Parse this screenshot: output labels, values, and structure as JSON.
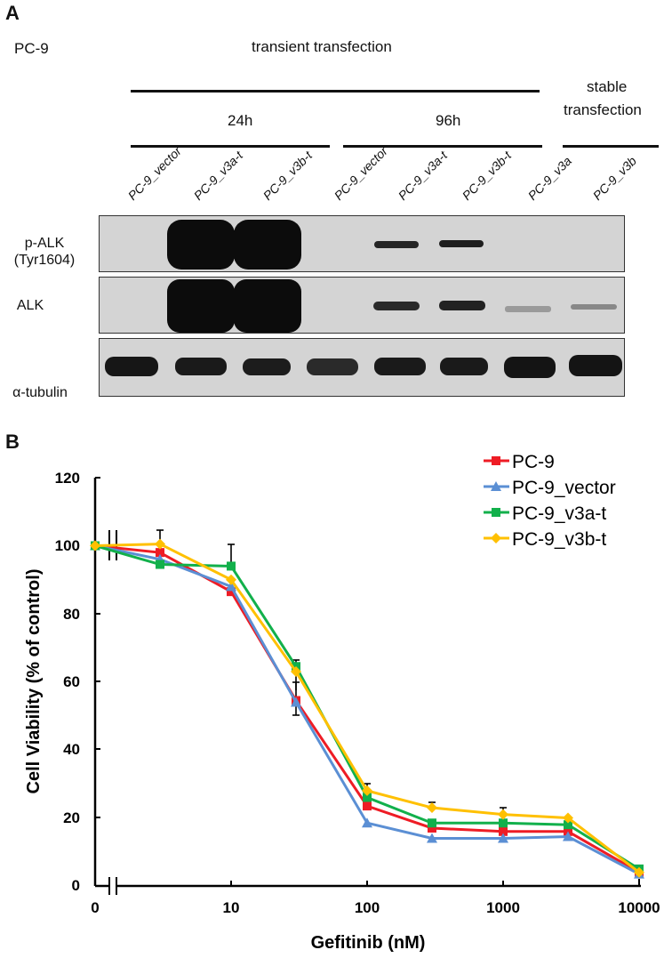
{
  "panelA": {
    "label": "A",
    "cell_line": "PC-9",
    "header_transient": "transient transfection",
    "header_24h": "24h",
    "header_96h": "96h",
    "header_stable_1": "stable",
    "header_stable_2": "transfection",
    "lanes": [
      "PC-9_vector",
      "PC-9_v3a-t",
      "PC-9_v3b-t",
      "PC-9_vector",
      "PC-9_v3a-t",
      "PC-9_v3b-t",
      "PC-9_v3a",
      "PC-9_v3b"
    ],
    "rows": [
      {
        "label_1": "p-ALK",
        "label_2": "(Tyr1604)"
      },
      {
        "label_1": "ALK",
        "label_2": ""
      },
      {
        "label_1": "α-tubulin",
        "label_2": ""
      }
    ]
  },
  "panelB": {
    "label": "B"
  },
  "chart_data": {
    "type": "line",
    "title": "",
    "xlabel": "Gefitinib (nM)",
    "ylabel": "Cell Viability (% of control)",
    "x_scale": "log (with axis break after 0)",
    "x": [
      0,
      3,
      10,
      30,
      100,
      300,
      1000,
      3000,
      10000
    ],
    "x_tick_labels": [
      "0",
      "10",
      "100",
      "1000",
      "10000"
    ],
    "y_tick_labels": [
      "0",
      "20",
      "40",
      "60",
      "80",
      "100",
      "120"
    ],
    "ylim": [
      0,
      120
    ],
    "grid": false,
    "legend_position": "upper right",
    "series": [
      {
        "name": "PC-9",
        "color": "#ee1c25",
        "marker": "square",
        "values": [
          100,
          98,
          86.5,
          54.5,
          23.5,
          17,
          16,
          16,
          4
        ]
      },
      {
        "name": "PC-9_vector",
        "color": "#5b8fd4",
        "marker": "triangle",
        "values": [
          100,
          96,
          88,
          54,
          18.5,
          14,
          14,
          14.5,
          3.5
        ]
      },
      {
        "name": "PC-9_v3a-t",
        "color": "#12b04b",
        "marker": "square",
        "values": [
          100,
          94.5,
          94,
          64.5,
          26,
          18.5,
          18.5,
          18,
          5
        ]
      },
      {
        "name": "PC-9_v3b-t",
        "color": "#ffc000",
        "marker": "diamond",
        "values": [
          100,
          100.5,
          90,
          63,
          28,
          23,
          21,
          20,
          4
        ]
      }
    ]
  }
}
